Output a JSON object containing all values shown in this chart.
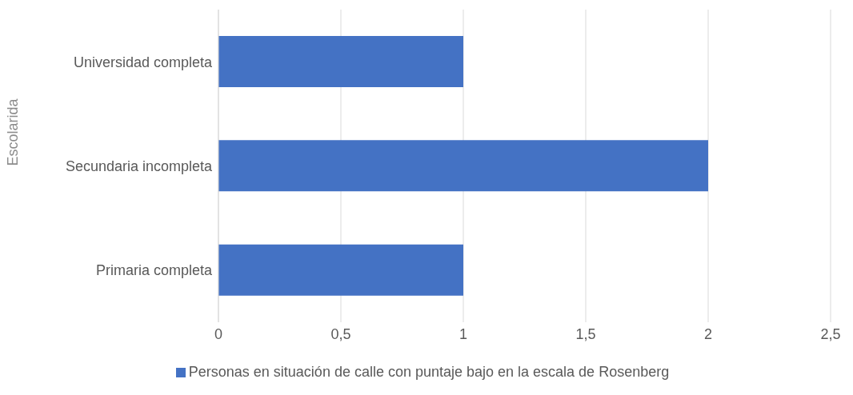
{
  "chart_data": {
    "type": "bar",
    "orientation": "horizontal",
    "ylabel": "Escolarida",
    "categories": [
      "Universidad completa",
      "Secundaria incompleta",
      "Primaria completa"
    ],
    "series": [
      {
        "name": "Personas en situación de calle con puntaje bajo en la escala de Rosenberg",
        "color": "#4472c4",
        "values": [
          1,
          2,
          1
        ]
      }
    ],
    "xlim": [
      0,
      2.5
    ],
    "xticks": [
      {
        "value": 0,
        "label": "0"
      },
      {
        "value": 0.5,
        "label": "0,5"
      },
      {
        "value": 1,
        "label": "1"
      },
      {
        "value": 1.5,
        "label": "1,5"
      },
      {
        "value": 2,
        "label": "2"
      },
      {
        "value": 2.5,
        "label": "2,5"
      }
    ],
    "grid": "x",
    "legend": "bottom"
  }
}
